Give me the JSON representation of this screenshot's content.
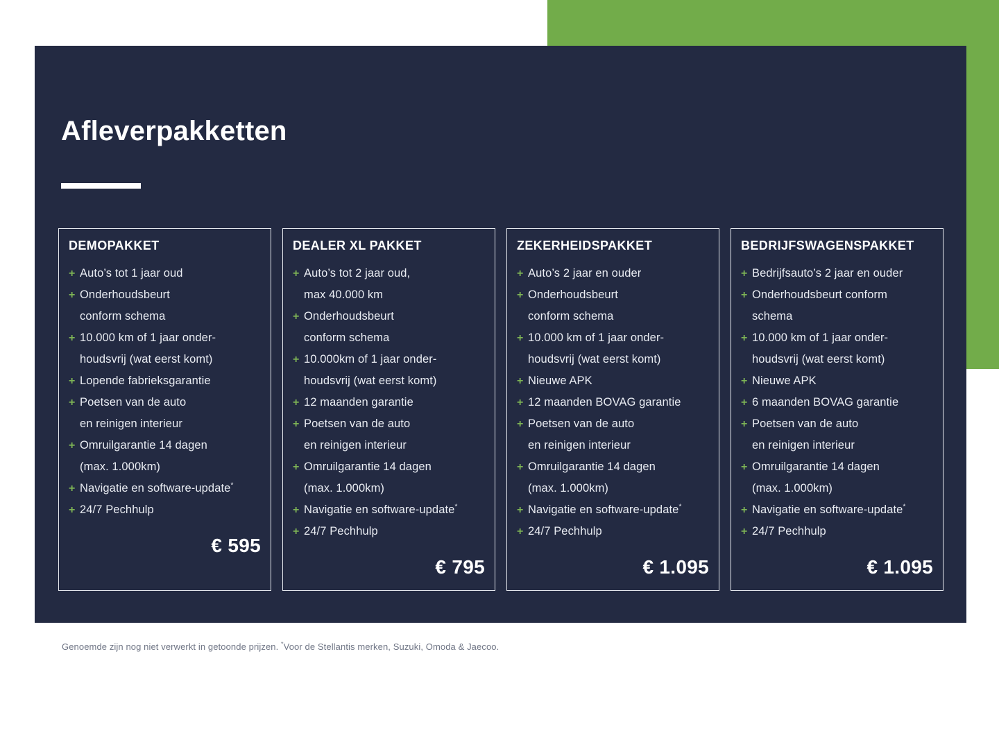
{
  "page": {
    "title": "Afleverpakketten",
    "footnote_prefix": "Genoemde zijn nog niet verwerkt in getoonde prijzen. ",
    "footnote_marker": "*",
    "footnote_suffix": "Voor de Stellantis merken, Suzuki, Omoda & Jaecoo."
  },
  "icons": {
    "plus": "+"
  },
  "colors": {
    "panel_navy": "#232A42",
    "accent_green": "#72AC4A",
    "plus_green": "#7DB355",
    "body_text": "#E9ECF2",
    "card_border": "#E4E7ED",
    "footnote_gray": "#6F7585"
  },
  "cards": [
    {
      "title": "DEMOPAKKET",
      "price": "€ 595",
      "items": [
        {
          "lines": [
            "Auto’s tot 1 jaar oud"
          ]
        },
        {
          "lines": [
            "Onderhoudsbeurt",
            "conform schema"
          ]
        },
        {
          "lines": [
            "10.000 km of 1 jaar onder-",
            "houdsvrij (wat eerst komt)"
          ]
        },
        {
          "lines": [
            "Lopende fabrieksgarantie"
          ]
        },
        {
          "lines": [
            "Poetsen van de auto",
            "en reinigen interieur"
          ]
        },
        {
          "lines": [
            "Omruilgarantie 14 dagen",
            "(max. 1.000km)"
          ]
        },
        {
          "lines": [
            "Navigatie en software-update"
          ],
          "sup": "*"
        },
        {
          "lines": [
            "24/7 Pechhulp"
          ]
        }
      ]
    },
    {
      "title": "DEALER XL PAKKET",
      "price": "€ 795",
      "items": [
        {
          "lines": [
            "Auto’s tot 2 jaar oud,",
            "max 40.000 km"
          ]
        },
        {
          "lines": [
            "Onderhoudsbeurt",
            "conform schema"
          ]
        },
        {
          "lines": [
            "10.000km of 1 jaar onder-",
            "houdsvrij (wat eerst komt)"
          ]
        },
        {
          "lines": [
            "12 maanden garantie"
          ]
        },
        {
          "lines": [
            "Poetsen van de auto",
            "en reinigen interieur"
          ]
        },
        {
          "lines": [
            "Omruilgarantie 14 dagen",
            "(max. 1.000km)"
          ]
        },
        {
          "lines": [
            "Navigatie en software-update"
          ],
          "sup": "*"
        },
        {
          "lines": [
            "24/7 Pechhulp"
          ]
        }
      ]
    },
    {
      "title": "ZEKERHEIDSPAKKET",
      "price": "€ 1.095",
      "items": [
        {
          "lines": [
            "Auto’s 2 jaar en ouder"
          ]
        },
        {
          "lines": [
            "Onderhoudsbeurt",
            "conform schema"
          ]
        },
        {
          "lines": [
            "10.000 km of 1 jaar onder-",
            "houdsvrij (wat eerst komt)"
          ]
        },
        {
          "lines": [
            "Nieuwe APK"
          ]
        },
        {
          "lines": [
            "12 maanden BOVAG garantie"
          ]
        },
        {
          "lines": [
            "Poetsen van de auto",
            "en reinigen interieur"
          ]
        },
        {
          "lines": [
            "Omruilgarantie 14 dagen",
            "(max. 1.000km)"
          ]
        },
        {
          "lines": [
            "Navigatie en software-update"
          ],
          "sup": "*"
        },
        {
          "lines": [
            "24/7 Pechhulp"
          ]
        }
      ]
    },
    {
      "title": "BEDRIJFSWAGENSPAKKET",
      "price": "€ 1.095",
      "items": [
        {
          "lines": [
            "Bedrijfsauto’s 2 jaar en ouder"
          ]
        },
        {
          "lines": [
            "Onderhoudsbeurt conform",
            "schema"
          ]
        },
        {
          "lines": [
            "10.000 km of 1 jaar onder-",
            "houdsvrij (wat eerst komt)"
          ]
        },
        {
          "lines": [
            "Nieuwe APK"
          ]
        },
        {
          "lines": [
            "6 maanden BOVAG garantie"
          ]
        },
        {
          "lines": [
            "Poetsen van de auto",
            "en reinigen interieur"
          ]
        },
        {
          "lines": [
            "Omruilgarantie 14 dagen",
            "(max. 1.000km)"
          ]
        },
        {
          "lines": [
            "Navigatie en software-update"
          ],
          "sup": "*"
        },
        {
          "lines": [
            "24/7 Pechhulp"
          ]
        }
      ]
    }
  ]
}
